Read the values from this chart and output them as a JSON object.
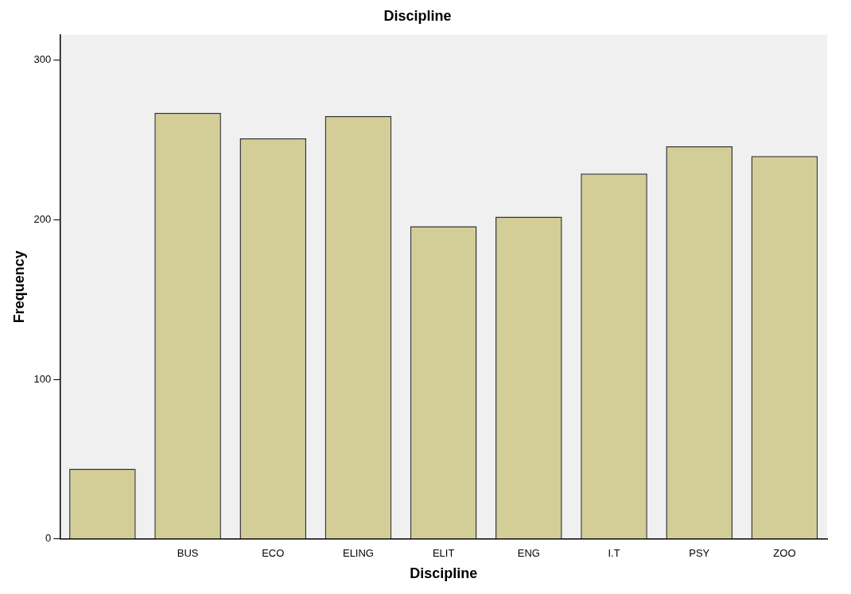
{
  "chart_data": {
    "type": "bar",
    "title": "Discipline",
    "xlabel": "Discipline",
    "ylabel": "Frequency",
    "categories": [
      null,
      "BUS",
      "ECO",
      "ELING",
      "ELIT",
      "ENG",
      "I.T",
      "PSY",
      "ZOO"
    ],
    "values": [
      44,
      267,
      251,
      265,
      196,
      202,
      229,
      246,
      240
    ],
    "color": "#d3ce97",
    "ylim": [
      0,
      316
    ],
    "yticks": [
      0,
      100,
      200,
      300
    ],
    "grid": false,
    "legend": false
  }
}
